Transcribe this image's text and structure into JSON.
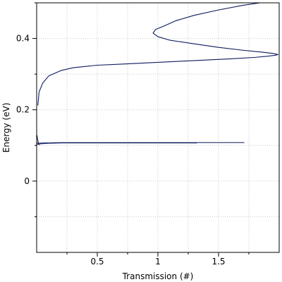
{
  "chart_data": {
    "type": "line",
    "title": "",
    "xlabel": "Transmission (#)",
    "ylabel": "Energy (eV)",
    "xlim": [
      0,
      2.0
    ],
    "ylim": [
      -0.2,
      0.5
    ],
    "x_ticks": [
      {
        "value": 0.5,
        "label": "0.5"
      },
      {
        "value": 1.0,
        "label": "1"
      },
      {
        "value": 1.5,
        "label": "1.5"
      }
    ],
    "x_minor_ticks": [
      0.25,
      0.75,
      1.25,
      1.75
    ],
    "y_ticks": [
      {
        "value": 0.0,
        "label": "0"
      },
      {
        "value": 0.2,
        "label": "0.2"
      },
      {
        "value": 0.4,
        "label": "0.4"
      }
    ],
    "y_minor_ticks": [
      -0.1,
      0.1,
      0.3,
      0.5
    ],
    "grid": true,
    "colors": {
      "line": "#0d1a5c",
      "grid": "#c8c8c8",
      "frame": "#000000"
    },
    "series": [
      {
        "x": [
          0.005,
          0.01,
          0.02,
          0.05,
          0.1,
          0.2,
          0.3,
          0.5,
          0.7,
          1.0,
          1.3,
          1.71
        ],
        "y": [
          0.107,
          0.106,
          0.106,
          0.107,
          0.107,
          0.108,
          0.108,
          0.108,
          0.108,
          0.108,
          0.108,
          0.108
        ]
      },
      {
        "x": [
          0.005,
          0.02,
          0.05,
          0.1,
          0.2,
          0.3,
          0.5,
          0.7,
          1.0,
          1.15,
          1.32
        ],
        "y": [
          0.103,
          0.104,
          0.105,
          0.106,
          0.107,
          0.107,
          0.107,
          0.107,
          0.107,
          0.107,
          0.107
        ]
      },
      {
        "x": [
          0.02,
          0.012,
          0.006,
          0.003
        ],
        "y": [
          0.102,
          0.11,
          0.12,
          0.128
        ]
      },
      {
        "x": [
          0.01,
          0.02,
          0.05,
          0.1,
          0.2,
          0.3,
          0.5,
          0.7,
          1.0,
          1.3,
          1.6,
          1.8,
          1.9,
          1.97,
          1.99,
          1.95,
          1.85,
          1.7,
          1.5,
          1.3,
          1.1,
          1.0,
          0.96,
          0.98,
          1.05,
          1.15,
          1.3,
          1.5,
          1.7,
          1.88
        ],
        "y": [
          0.213,
          0.25,
          0.275,
          0.295,
          0.31,
          0.318,
          0.325,
          0.328,
          0.333,
          0.338,
          0.343,
          0.347,
          0.35,
          0.353,
          0.355,
          0.358,
          0.362,
          0.367,
          0.375,
          0.385,
          0.395,
          0.405,
          0.415,
          0.425,
          0.435,
          0.45,
          0.465,
          0.48,
          0.493,
          0.502
        ]
      }
    ]
  }
}
